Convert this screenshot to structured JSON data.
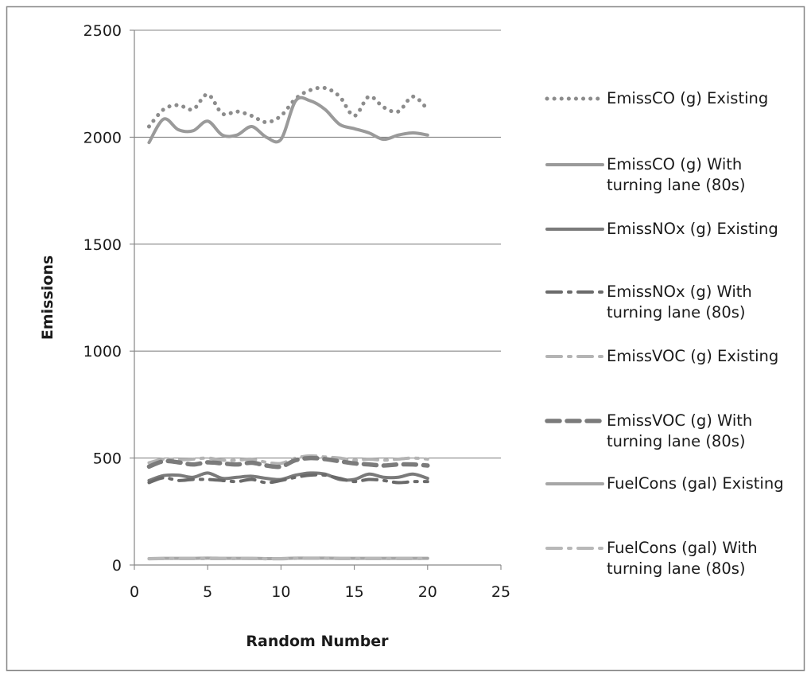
{
  "chart_data": {
    "type": "line",
    "title": "",
    "xlabel": "Random Number",
    "ylabel": "Emissions",
    "xlim": [
      0,
      25
    ],
    "ylim": [
      0,
      2500
    ],
    "x_ticks": [
      "0",
      "5",
      "10",
      "15",
      "20",
      "25"
    ],
    "y_ticks": [
      "0",
      "500",
      "1000",
      "1500",
      "2000",
      "2500"
    ],
    "grid": "horizontal",
    "legend_position": "right",
    "x": [
      1,
      2,
      3,
      4,
      5,
      6,
      7,
      8,
      9,
      10,
      11,
      12,
      13,
      14,
      15,
      16,
      17,
      18,
      19,
      20
    ],
    "series": [
      {
        "name": "EmissCO (g) Existing",
        "legend_lines": [
          "EmissCO (g) Existing"
        ],
        "style": "dotted",
        "color": "#8c8c8c",
        "values": [
          2050,
          2130,
          2150,
          2130,
          2200,
          2110,
          2120,
          2100,
          2070,
          2100,
          2180,
          2220,
          2230,
          2190,
          2100,
          2190,
          2140,
          2120,
          2190,
          2130
        ]
      },
      {
        "name": "EmissCO (g) With turning lane (80s)",
        "legend_lines": [
          "EmissCO (g) With",
          "turning lane (80s)"
        ],
        "style": "solid",
        "color": "#9a9a9a",
        "values": [
          1975,
          2085,
          2035,
          2030,
          2075,
          2010,
          2010,
          2050,
          2000,
          1990,
          2170,
          2170,
          2130,
          2060,
          2040,
          2020,
          1990,
          2010,
          2020,
          2010
        ]
      },
      {
        "name": "EmissNOx (g) Existing",
        "legend_lines": [
          "EmissNOx (g) Existing"
        ],
        "style": "solid",
        "color": "#7a7a7a",
        "values": [
          395,
          418,
          420,
          410,
          430,
          405,
          410,
          415,
          405,
          400,
          420,
          430,
          425,
          400,
          400,
          425,
          410,
          410,
          425,
          405
        ]
      },
      {
        "name": "EmissNOx (g) With turning lane (80s)",
        "legend_lines": [
          "EmissNOx (g) With",
          "turning lane (80s)"
        ],
        "style": "dashdot",
        "color": "#6a6a6a",
        "values": [
          385,
          408,
          395,
          400,
          400,
          395,
          390,
          400,
          385,
          395,
          410,
          420,
          420,
          405,
          390,
          400,
          395,
          385,
          390,
          390
        ]
      },
      {
        "name": "EmissVOC (g) Existing",
        "legend_lines": [
          "EmissVOC (g) Existing"
        ],
        "style": "dashdot",
        "color": "#b4b4b4",
        "values": [
          478,
          495,
          492,
          495,
          500,
          490,
          490,
          495,
          480,
          475,
          500,
          510,
          505,
          500,
          490,
          495,
          490,
          495,
          500,
          495
        ]
      },
      {
        "name": "EmissVOC (g) With turning lane (80s)",
        "legend_lines": [
          "EmissVOC (g) With",
          "turning lane (80s)"
        ],
        "style": "dashed",
        "color": "#7b7b7b",
        "values": [
          460,
          485,
          480,
          470,
          480,
          475,
          470,
          478,
          465,
          460,
          490,
          500,
          495,
          485,
          475,
          470,
          465,
          470,
          470,
          465
        ]
      },
      {
        "name": "FuelCons (gal) Existing",
        "legend_lines": [
          "FuelCons (gal) Existing"
        ],
        "style": "solid",
        "color": "#a6a6a6",
        "values": [
          30,
          31,
          31,
          31,
          32,
          31,
          31,
          31,
          30,
          30,
          32,
          32,
          32,
          31,
          31,
          31,
          31,
          31,
          31,
          31
        ]
      },
      {
        "name": "FuelCons (gal) With turning lane (80s)",
        "legend_lines": [
          "FuelCons (gal) With",
          "turning lane (80s)"
        ],
        "style": "dashdot",
        "color": "#b8b8b8",
        "values": [
          29,
          30,
          30,
          30,
          30,
          30,
          30,
          30,
          29,
          29,
          31,
          31,
          31,
          30,
          30,
          30,
          30,
          30,
          30,
          30
        ]
      }
    ]
  }
}
